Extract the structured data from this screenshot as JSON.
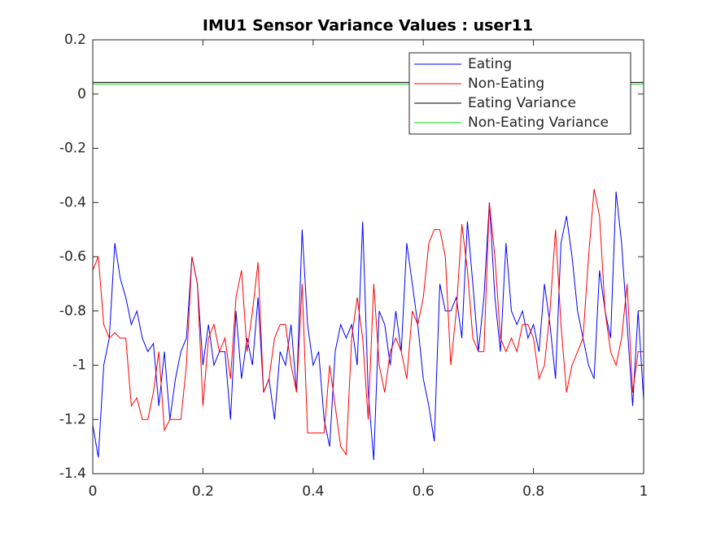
{
  "chart_data": {
    "type": "line",
    "title": "IMU1 Sensor Variance Values : user11",
    "xlim": [
      0,
      1
    ],
    "xticks": [
      0,
      0.2,
      0.4,
      0.6,
      0.8,
      1
    ],
    "ylim": [
      -1.4,
      0.2
    ],
    "yticks": [
      -1.4,
      -1.2,
      -1,
      -0.8,
      -0.6,
      -0.4,
      -0.2,
      0,
      0.2
    ],
    "legend": "top-right",
    "series": [
      {
        "name": "Eating",
        "color": "#0000ff",
        "x": [
          0,
          0.01,
          0.02,
          0.03,
          0.04,
          0.05,
          0.06,
          0.07,
          0.08,
          0.09,
          0.1,
          0.11,
          0.12,
          0.13,
          0.14,
          0.15,
          0.16,
          0.17,
          0.18,
          0.19,
          0.2,
          0.21,
          0.22,
          0.23,
          0.24,
          0.25,
          0.26,
          0.27,
          0.28,
          0.29,
          0.3,
          0.31,
          0.32,
          0.33,
          0.34,
          0.35,
          0.36,
          0.37,
          0.38,
          0.39,
          0.4,
          0.41,
          0.42,
          0.43,
          0.44,
          0.45,
          0.46,
          0.47,
          0.48,
          0.49,
          0.5,
          0.51,
          0.52,
          0.53,
          0.54,
          0.55,
          0.56,
          0.57,
          0.58,
          0.59,
          0.6,
          0.61,
          0.62,
          0.63,
          0.64,
          0.65,
          0.66,
          0.67,
          0.68,
          0.69,
          0.7,
          0.71,
          0.72,
          0.73,
          0.74,
          0.75,
          0.76,
          0.77,
          0.78,
          0.79,
          0.8,
          0.81,
          0.82,
          0.83,
          0.84,
          0.85,
          0.86,
          0.87,
          0.88,
          0.89,
          0.9,
          0.91,
          0.92,
          0.93,
          0.94,
          0.95,
          0.96,
          0.97,
          0.98,
          0.99,
          1
        ],
        "values": [
          -1.22,
          -1.34,
          -1.0,
          -0.9,
          -0.55,
          -0.68,
          -0.75,
          -0.85,
          -0.8,
          -0.9,
          -0.95,
          -0.92,
          -1.15,
          -0.95,
          -1.2,
          -1.05,
          -0.95,
          -0.9,
          -0.6,
          -0.7,
          -1.0,
          -0.85,
          -1.0,
          -0.95,
          -0.95,
          -1.2,
          -0.8,
          -1.05,
          -0.9,
          -1.0,
          -0.75,
          -1.1,
          -1.05,
          -1.2,
          -0.95,
          -1.0,
          -0.85,
          -1.1,
          -0.5,
          -0.85,
          -1.0,
          -0.95,
          -1.2,
          -1.3,
          -0.95,
          -0.85,
          -0.9,
          -0.85,
          -1.0,
          -0.47,
          -1.1,
          -1.35,
          -0.8,
          -0.85,
          -1.0,
          -0.8,
          -0.95,
          -0.55,
          -0.7,
          -0.85,
          -1.05,
          -1.15,
          -1.28,
          -0.7,
          -0.8,
          -0.8,
          -0.75,
          -0.9,
          -0.47,
          -0.7,
          -0.95,
          -0.75,
          -0.4,
          -0.75,
          -0.95,
          -0.55,
          -0.8,
          -0.85,
          -0.8,
          -0.9,
          -0.85,
          -0.95,
          -0.7,
          -0.85,
          -1.05,
          -0.55,
          -0.45,
          -0.6,
          -0.8,
          -0.9,
          -1.0,
          -1.05,
          -0.65,
          -0.8,
          -0.9,
          -0.36,
          -0.55,
          -0.85,
          -1.15,
          -0.8,
          -1.13
        ]
      },
      {
        "name": "Non-Eating",
        "color": "#ff0000",
        "x": [
          0,
          0.01,
          0.02,
          0.03,
          0.04,
          0.05,
          0.06,
          0.07,
          0.08,
          0.09,
          0.1,
          0.11,
          0.12,
          0.13,
          0.14,
          0.15,
          0.16,
          0.17,
          0.18,
          0.19,
          0.2,
          0.21,
          0.22,
          0.23,
          0.24,
          0.25,
          0.26,
          0.27,
          0.28,
          0.29,
          0.3,
          0.31,
          0.32,
          0.33,
          0.34,
          0.35,
          0.36,
          0.37,
          0.38,
          0.39,
          0.4,
          0.41,
          0.42,
          0.43,
          0.44,
          0.45,
          0.46,
          0.47,
          0.48,
          0.49,
          0.5,
          0.51,
          0.52,
          0.53,
          0.54,
          0.55,
          0.56,
          0.57,
          0.58,
          0.59,
          0.6,
          0.61,
          0.62,
          0.63,
          0.64,
          0.65,
          0.66,
          0.67,
          0.68,
          0.69,
          0.7,
          0.71,
          0.72,
          0.73,
          0.74,
          0.75,
          0.76,
          0.77,
          0.78,
          0.79,
          0.8,
          0.81,
          0.82,
          0.83,
          0.84,
          0.85,
          0.86,
          0.87,
          0.88,
          0.89,
          0.9,
          0.91,
          0.92,
          0.93,
          0.94,
          0.95,
          0.96,
          0.97,
          0.98,
          0.99,
          1
        ],
        "values": [
          -0.65,
          -0.6,
          -0.85,
          -0.9,
          -0.88,
          -0.9,
          -0.9,
          -1.15,
          -1.12,
          -1.2,
          -1.2,
          -1.1,
          -0.95,
          -1.24,
          -1.2,
          -1.2,
          -1.2,
          -1.0,
          -0.6,
          -0.7,
          -1.15,
          -0.9,
          -0.85,
          -0.95,
          -0.9,
          -1.05,
          -0.75,
          -0.65,
          -0.95,
          -0.8,
          -0.62,
          -1.1,
          -1.05,
          -0.9,
          -0.85,
          -0.85,
          -1.0,
          -1.1,
          -0.7,
          -1.25,
          -1.25,
          -1.25,
          -1.25,
          -1.0,
          -1.15,
          -1.3,
          -1.33,
          -0.9,
          -0.75,
          -0.9,
          -1.2,
          -0.7,
          -1.0,
          -1.1,
          -0.95,
          -0.9,
          -0.95,
          -1.05,
          -0.8,
          -0.85,
          -0.75,
          -0.55,
          -0.5,
          -0.5,
          -0.6,
          -1.0,
          -0.8,
          -0.48,
          -0.65,
          -0.9,
          -0.95,
          -0.95,
          -0.4,
          -0.6,
          -0.9,
          -0.95,
          -0.9,
          -0.95,
          -0.85,
          -0.85,
          -0.9,
          -1.05,
          -1.0,
          -0.8,
          -0.5,
          -0.85,
          -1.1,
          -1.0,
          -0.95,
          -0.9,
          -0.6,
          -0.35,
          -0.45,
          -0.8,
          -0.95,
          -1.0,
          -0.9,
          -0.7,
          -1.1,
          -0.95,
          -0.95
        ]
      },
      {
        "name": "Eating Variance",
        "color": "#000000",
        "x": [
          0,
          1
        ],
        "values": [
          0.043,
          0.043
        ]
      },
      {
        "name": "Non-Eating Variance",
        "color": "#00d000",
        "x": [
          0,
          1
        ],
        "values": [
          0.037,
          0.037
        ]
      }
    ]
  }
}
